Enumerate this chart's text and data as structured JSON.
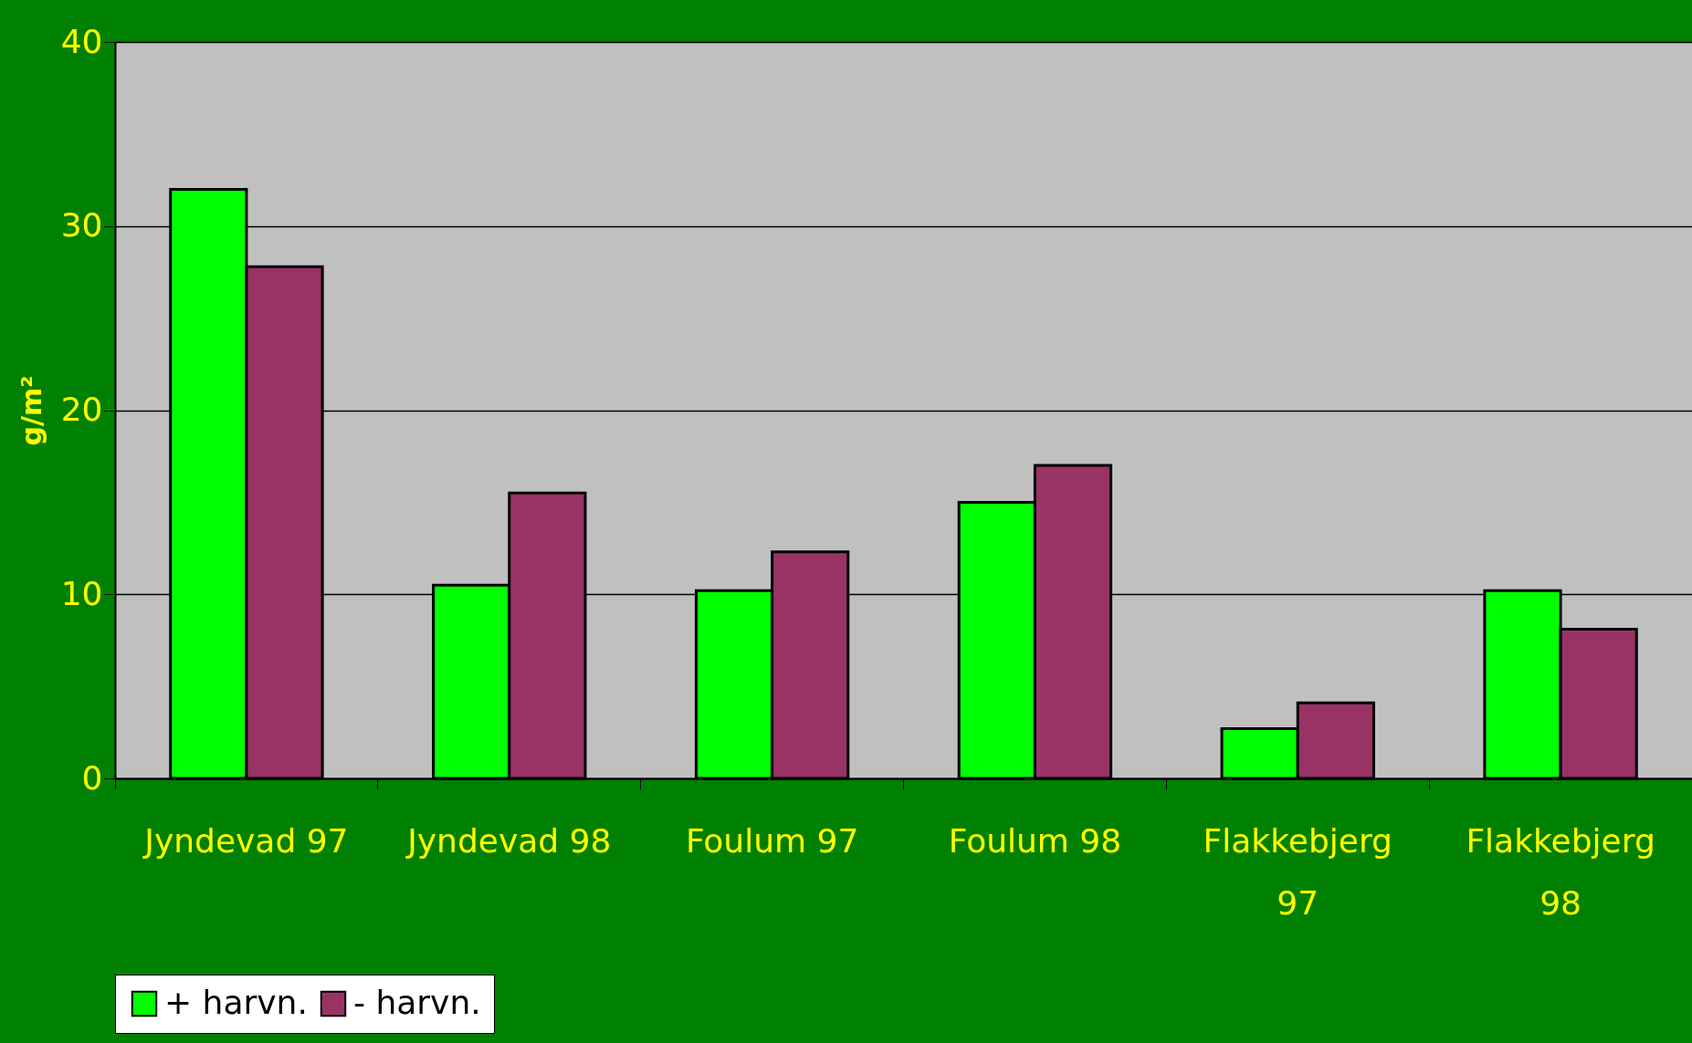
{
  "chart_data": {
    "type": "bar",
    "ylabel": "g/m²",
    "categories": [
      "Jyndevad 97",
      "Jyndevad 98",
      "Foulum 97",
      "Foulum 98",
      "Flakkebjerg 97",
      "Flakkebjerg 98"
    ],
    "series": [
      {
        "name": "+ harvn.",
        "color": "#00ff00",
        "values": [
          32.0,
          10.5,
          10.2,
          15.0,
          2.7,
          10.2
        ]
      },
      {
        "name": "- harvn.",
        "color": "#993366",
        "values": [
          27.8,
          15.5,
          12.3,
          17.0,
          4.1,
          8.1
        ]
      }
    ],
    "ylim": [
      0,
      40
    ],
    "yticks": [
      0,
      10,
      20,
      30,
      40
    ],
    "grid": "y",
    "legend": "bottom"
  }
}
